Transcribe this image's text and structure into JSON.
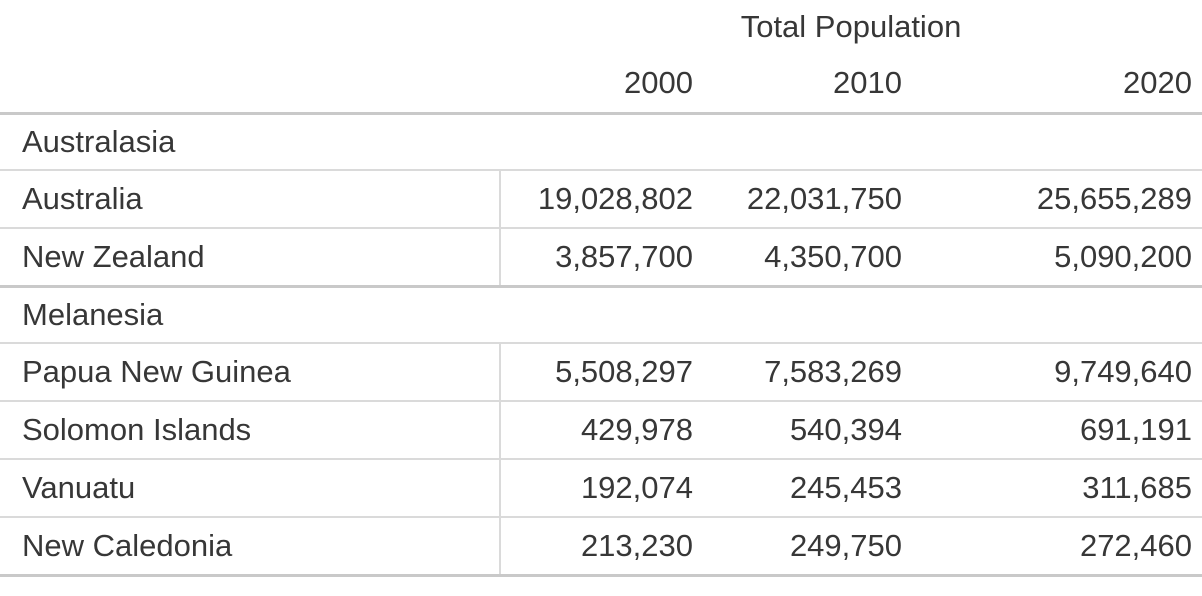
{
  "colors": {
    "text": "#373737",
    "rule_heavy": "#c9c9c9",
    "rule_light": "#dadada",
    "background": "#ffffff"
  },
  "table": {
    "spanner": "Total Population",
    "col_headers": [
      "2000",
      "2010",
      "2020"
    ],
    "groups": [
      {
        "label": "Australasia",
        "rows": [
          {
            "label": "Australia",
            "values": [
              "19,028,802",
              "22,031,750",
              "25,655,289"
            ]
          },
          {
            "label": "New Zealand",
            "values": [
              "3,857,700",
              "4,350,700",
              "5,090,200"
            ]
          }
        ]
      },
      {
        "label": "Melanesia",
        "rows": [
          {
            "label": "Papua New Guinea",
            "values": [
              "5,508,297",
              "7,583,269",
              "9,749,640"
            ]
          },
          {
            "label": "Solomon Islands",
            "values": [
              "429,978",
              "540,394",
              "691,191"
            ]
          },
          {
            "label": "Vanuatu",
            "values": [
              "192,074",
              "245,453",
              "311,685"
            ]
          },
          {
            "label": "New Caledonia",
            "values": [
              "213,230",
              "249,750",
              "272,460"
            ]
          }
        ]
      }
    ]
  },
  "chart_data": {
    "type": "table",
    "title": "Total Population",
    "columns": [
      "",
      "2000",
      "2010",
      "2020"
    ],
    "groups": [
      {
        "label": "Australasia",
        "rows": [
          {
            "label": "Australia",
            "values": [
              19028802,
              22031750,
              25655289
            ]
          },
          {
            "label": "New Zealand",
            "values": [
              3857700,
              4350700,
              5090200
            ]
          }
        ]
      },
      {
        "label": "Melanesia",
        "rows": [
          {
            "label": "Papua New Guinea",
            "values": [
              5508297,
              7583269,
              9749640
            ]
          },
          {
            "label": "Solomon Islands",
            "values": [
              429978,
              540394,
              691191
            ]
          },
          {
            "label": "Vanuatu",
            "values": [
              192074,
              245453,
              311685
            ]
          },
          {
            "label": "New Caledonia",
            "values": [
              213230,
              249750,
              272460
            ]
          }
        ]
      }
    ]
  }
}
